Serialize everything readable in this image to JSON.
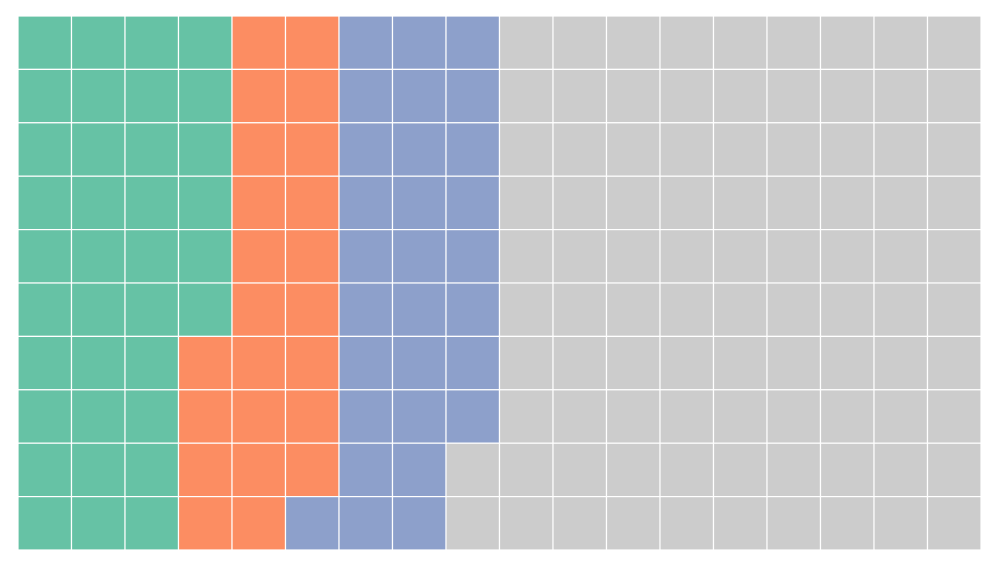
{
  "chart_data": {
    "type": "waffle",
    "rows": 10,
    "values": [
      36,
      23,
      29,
      92
    ],
    "colors": [
      "#66c2a5",
      "#fc8d62",
      "#8da0cb",
      "#cccccc"
    ]
  }
}
